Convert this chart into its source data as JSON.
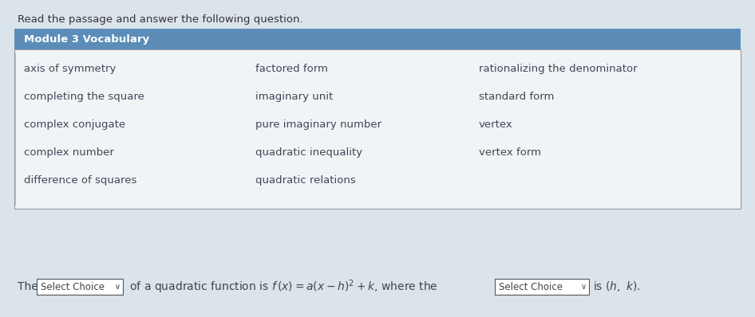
{
  "bg_color": "#dce4eb",
  "header_text": "Read the passage and answer the following question.",
  "module_header_text": "Module 3 Vocabulary",
  "module_header_bg": "#5b8db8",
  "module_header_text_color": "#ffffff",
  "vocab_box_bg": "#e8eef3",
  "vocab_box_border": "#888888",
  "col1": [
    "axis of symmetry",
    "completing the square",
    "complex conjugate",
    "complex number",
    "difference of squares"
  ],
  "col2": [
    "factored form",
    "imaginary unit",
    "pure imaginary number",
    "quadratic inequality",
    "quadratic relations"
  ],
  "col3": [
    "rationalizing the denominator",
    "standard form",
    "vertex",
    "vertex form"
  ],
  "vocab_text_color": "#444455",
  "bottom_text_color": "#444444",
  "dropdown1_text": "Select Choice",
  "dropdown2_text": "Select Choice",
  "dropdown_border_color": "#555555",
  "dropdown_bg": "#ffffff",
  "figsize": [
    9.46,
    3.98
  ],
  "dpi": 100
}
